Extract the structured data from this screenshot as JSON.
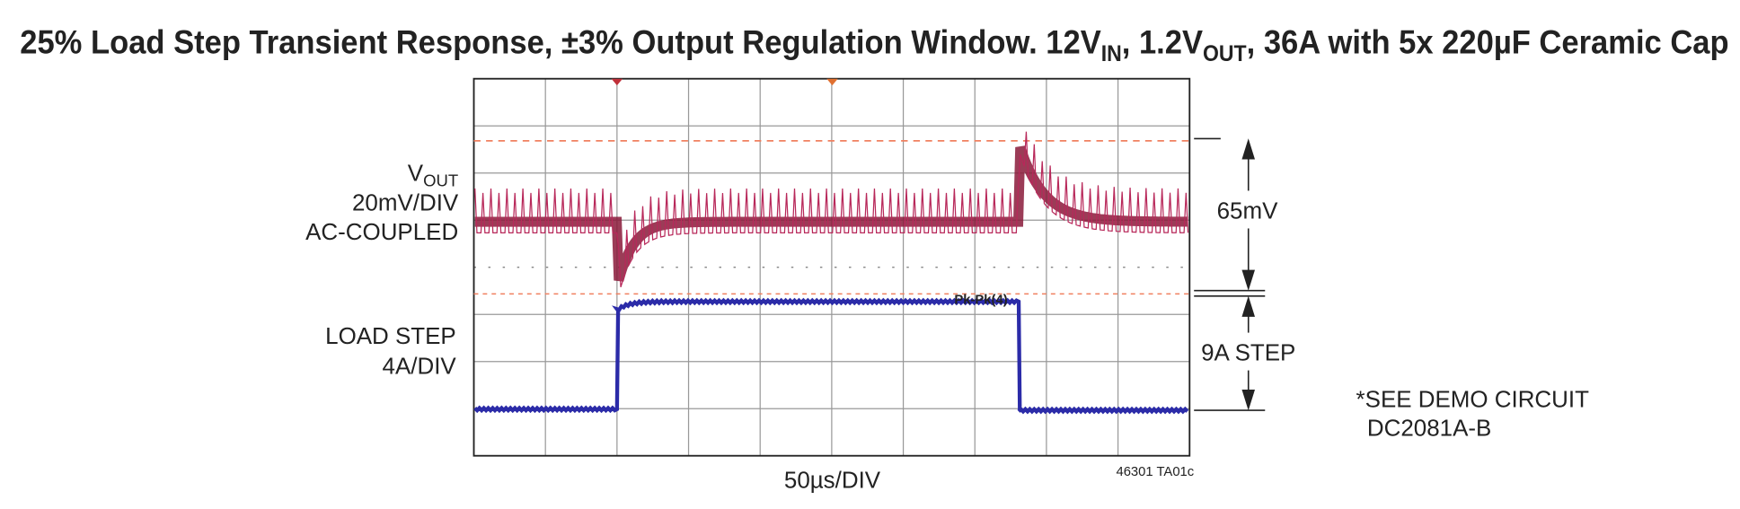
{
  "header": {
    "title": [
      "25% Load Step Transient Response, ±3% Output Regulation Window. 12V",
      "IN",
      ", 1.2V",
      "OUT",
      ", 36A with 5x 220µF Ceramic Cap"
    ]
  },
  "labels": {
    "vout": {
      "name": "V",
      "sub": "OUT",
      "scale": "20mV/DIV",
      "coupling": "AC-COUPLED"
    },
    "load": {
      "name": "LOAD STEP",
      "scale": "4A/DIV"
    },
    "time_scale": "50µs/DIV",
    "figure_id": "46301 TA01c",
    "measurement": "Pk-Pk(4)",
    "deviation": "65mV",
    "step": "9A STEP",
    "note": [
      "*SEE DEMO CIRCUIT",
      "DC2081A-B"
    ]
  }
}
